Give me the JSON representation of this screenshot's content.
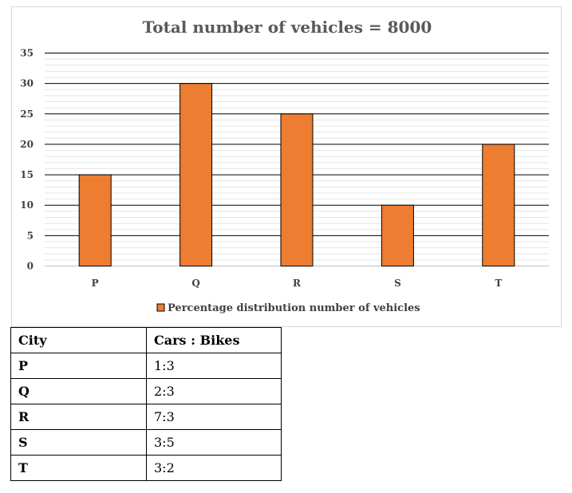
{
  "chart_data": {
    "type": "bar",
    "title": "Total number of vehicles = 8000",
    "categories": [
      "P",
      "Q",
      "R",
      "S",
      "T"
    ],
    "series": [
      {
        "name": "Percentage distribution number of vehicles",
        "values": [
          15,
          30,
          25,
          10,
          20
        ]
      }
    ],
    "ylim": [
      0,
      35
    ],
    "yticks": [
      0,
      5,
      10,
      15,
      20,
      25,
      30,
      35
    ],
    "grid": true,
    "legend": "bottom",
    "bar_color": "#ed7d31",
    "xlabel": "",
    "ylabel": ""
  },
  "table": {
    "headers": [
      "City",
      "Cars : Bikes"
    ],
    "rows": [
      [
        "P",
        "1:3"
      ],
      [
        "Q",
        "2:3"
      ],
      [
        "R",
        "7:3"
      ],
      [
        "S",
        "3:5"
      ],
      [
        "T",
        "3:2"
      ]
    ]
  }
}
